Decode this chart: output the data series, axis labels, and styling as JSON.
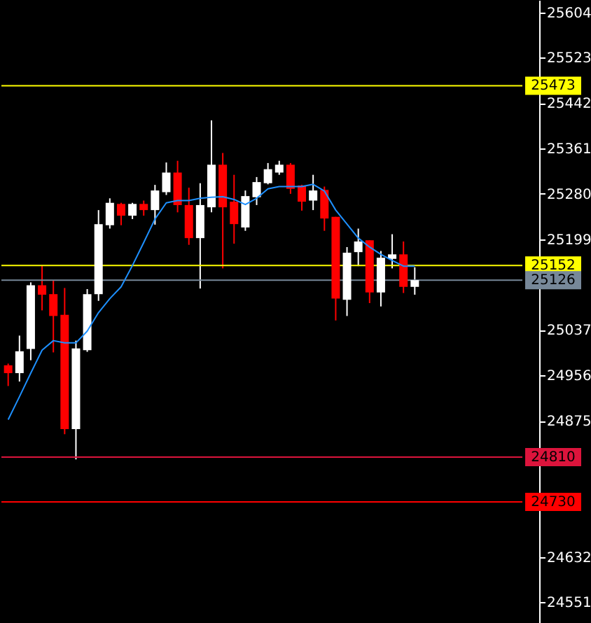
{
  "chart_data": {
    "type": "candlestick",
    "categories": [
      null,
      null,
      null,
      null,
      null,
      null,
      null,
      null,
      null,
      null,
      null,
      null,
      null,
      null,
      null,
      null,
      null,
      null,
      null,
      null,
      null,
      null,
      null,
      null,
      null,
      null,
      null,
      null,
      null,
      null,
      null,
      null,
      null,
      null,
      null,
      null,
      null
    ],
    "ohlc": [
      [
        24974,
        24977,
        24937,
        24960
      ],
      [
        24960,
        25027,
        24945,
        24999
      ],
      [
        25003,
        25122,
        24983,
        25117
      ],
      [
        25117,
        25152,
        25072,
        25100
      ],
      [
        25101,
        25125,
        24997,
        25062
      ],
      [
        25064,
        25112,
        24851,
        24860
      ],
      [
        24860,
        25018,
        24806,
        25004
      ],
      [
        25001,
        25110,
        24998,
        25101
      ],
      [
        25101,
        25251,
        25089,
        25226
      ],
      [
        25224,
        25272,
        25218,
        25264
      ],
      [
        25262,
        25264,
        25224,
        25241
      ],
      [
        25241,
        25264,
        25235,
        25262
      ],
      [
        25262,
        25268,
        25241,
        25251
      ],
      [
        25251,
        25296,
        25225,
        25286
      ],
      [
        25283,
        25336,
        25278,
        25318
      ],
      [
        25318,
        25339,
        25247,
        25260
      ],
      [
        25260,
        25291,
        25189,
        25201
      ],
      [
        25201,
        25299,
        25111,
        25260
      ],
      [
        25256,
        25411,
        25247,
        25332
      ],
      [
        25332,
        25353,
        25147,
        25256
      ],
      [
        25266,
        25314,
        25191,
        25226
      ],
      [
        25220,
        25286,
        25214,
        25276
      ],
      [
        25274,
        25310,
        25260,
        25301
      ],
      [
        25299,
        25335,
        25297,
        25324
      ],
      [
        25318,
        25339,
        25314,
        25332
      ],
      [
        25332,
        25335,
        25280,
        25289
      ],
      [
        25295,
        25296,
        25250,
        25266
      ],
      [
        25268,
        25314,
        25251,
        25286
      ],
      [
        25287,
        25293,
        25214,
        25236
      ],
      [
        25239,
        25239,
        25054,
        25093
      ],
      [
        25091,
        25185,
        25062,
        25175
      ],
      [
        25176,
        25218,
        25151,
        25195
      ],
      [
        25197,
        25197,
        25085,
        25104
      ],
      [
        25104,
        25178,
        25079,
        25166
      ],
      [
        25164,
        25208,
        25147,
        25172
      ],
      [
        25172,
        25195,
        25103,
        25114
      ],
      [
        25114,
        25149,
        25100,
        25126
      ]
    ],
    "colors": [
      "#ff0000",
      "#ffffff",
      "#ffffff",
      "#ff0000",
      "#ff0000",
      "#ff0000",
      "#ffffff",
      "#ffffff",
      "#ffffff",
      "#ffffff",
      "#ff0000",
      "#ffffff",
      "#ff0000",
      "#ffffff",
      "#ffffff",
      "#ff0000",
      "#ff0000",
      "#ffffff",
      "#ffffff",
      "#ff0000",
      "#ff0000",
      "#ffffff",
      "#ffffff",
      "#ffffff",
      "#ffffff",
      "#ff0000",
      "#ff0000",
      "#ffffff",
      "#ff0000",
      "#ff0000",
      "#ffffff",
      "#ffffff",
      "#ff0000",
      "#ffffff",
      "#ffffff",
      "#ff0000",
      "#ffffff"
    ],
    "series": [
      {
        "type": "line",
        "color": "#1e90ff",
        "values": [
          24877,
          24918,
          24960,
          25001,
          25018,
          25014,
          25014,
          25035,
          25068,
          25093,
          25114,
          25152,
          25193,
          25235,
          25264,
          25268,
          25268,
          25272,
          25274,
          25275,
          25270,
          25261,
          25272,
          25289,
          25293,
          25293,
          25293,
          25297,
          25285,
          25251,
          25226,
          25201,
          25185,
          25172,
          25161,
          25151,
          25151
        ]
      }
    ],
    "ylim": [
      24514,
      25626
    ],
    "yticks": [
      25604,
      25523,
      25442,
      25361,
      25280,
      25199,
      25037,
      24956,
      24875,
      24632,
      24551
    ],
    "ref_lines": [
      {
        "axis": "y",
        "value": 25473,
        "label": "25473",
        "color": "#ffff00"
      },
      {
        "axis": "y",
        "value": 25152,
        "label": "25152",
        "color": "#ffff00"
      },
      {
        "axis": "y",
        "value": 25126,
        "label": "25126",
        "color": "#778899"
      },
      {
        "axis": "y",
        "value": 24810,
        "label": "24810",
        "color": "#dc143c"
      },
      {
        "axis": "y",
        "value": 24730,
        "label": "24730",
        "color": "#ff0000"
      }
    ],
    "grid": false,
    "marker": "none"
  }
}
